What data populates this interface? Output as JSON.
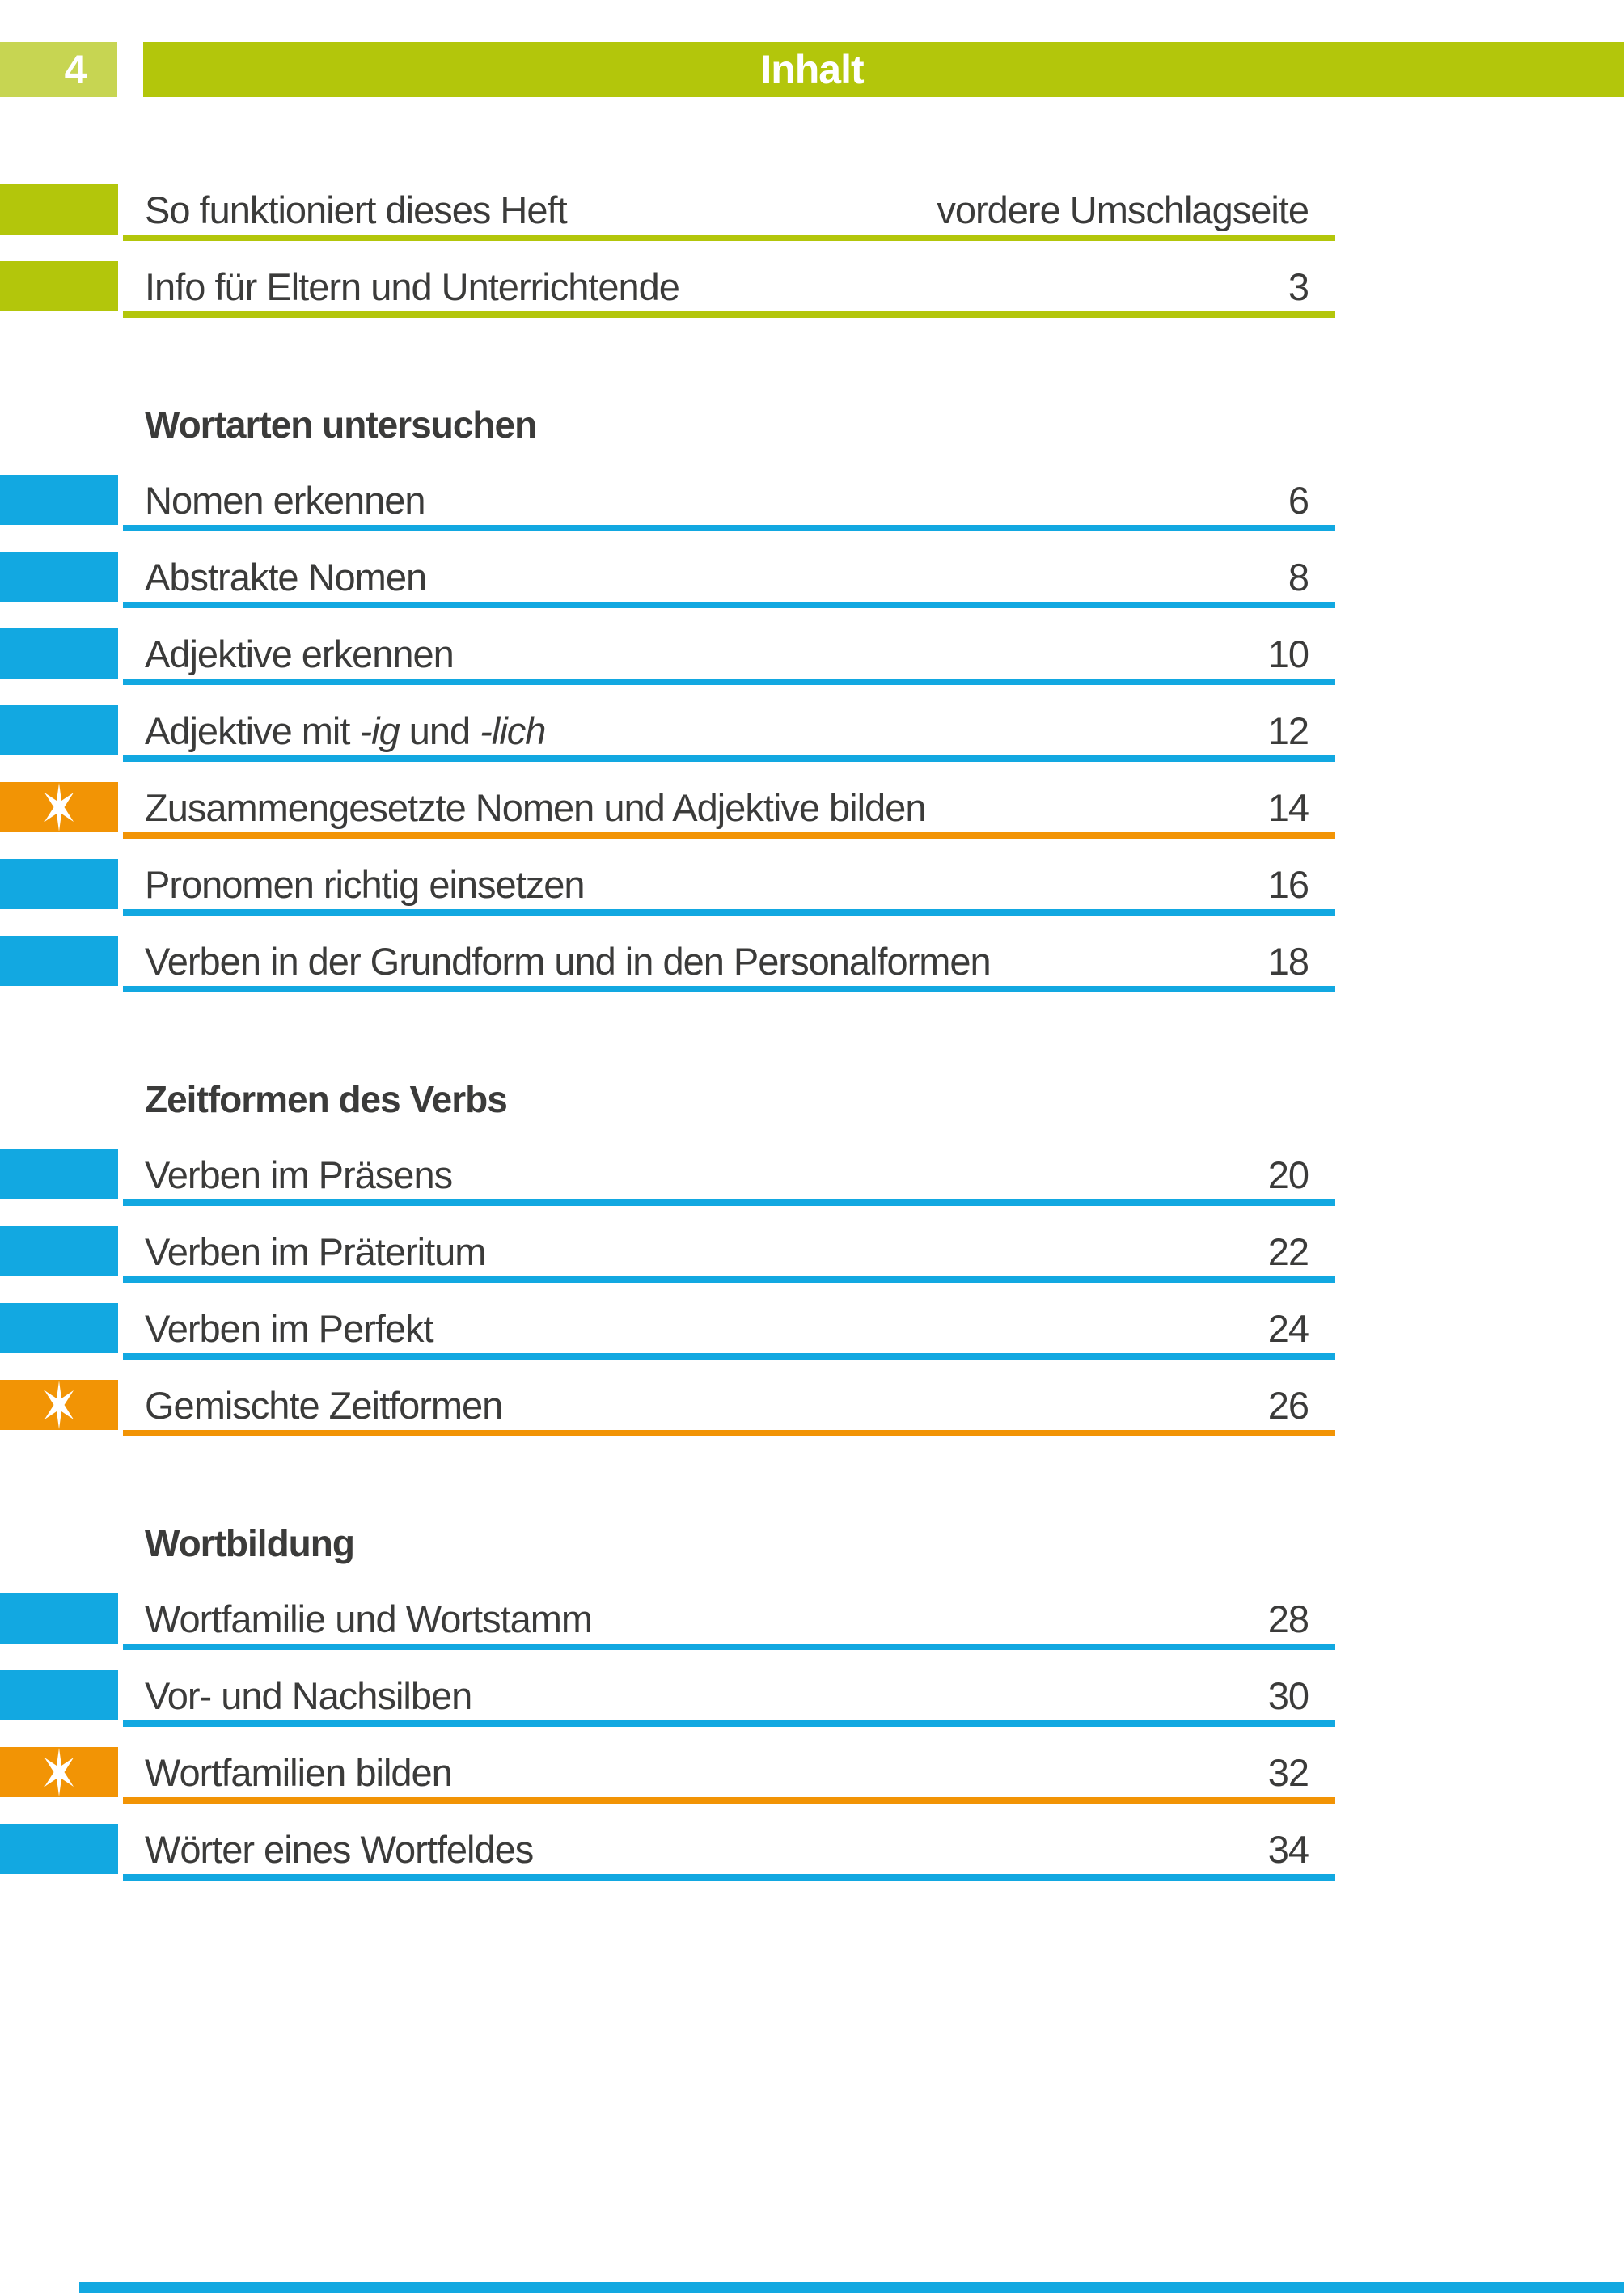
{
  "colors": {
    "green": "#b3c60b",
    "green_light": "#c7d552",
    "blue": "#12a8e1",
    "orange": "#f29405",
    "ink": "#3b3b3a"
  },
  "header": {
    "page_number": "4",
    "title": "Inhalt"
  },
  "toc": {
    "groups": [
      {
        "title": null,
        "items": [
          {
            "marker": "green",
            "label_parts": [
              {
                "text": "So funktioniert dieses Heft"
              }
            ],
            "page": "vordere Umschlagseite"
          },
          {
            "marker": "green",
            "label_parts": [
              {
                "text": "Info für Eltern und Unterrichtende"
              }
            ],
            "page": "3"
          }
        ]
      },
      {
        "title": "Wortarten untersuchen",
        "items": [
          {
            "marker": "blue",
            "label_parts": [
              {
                "text": "Nomen erkennen"
              }
            ],
            "page": "6"
          },
          {
            "marker": "blue",
            "label_parts": [
              {
                "text": "Abstrakte Nomen"
              }
            ],
            "page": "8"
          },
          {
            "marker": "blue",
            "label_parts": [
              {
                "text": "Adjektive erkennen"
              }
            ],
            "page": "10"
          },
          {
            "marker": "blue",
            "label_parts": [
              {
                "text": "Adjektive mit "
              },
              {
                "text": "-ig",
                "italic": true
              },
              {
                "text": " und "
              },
              {
                "text": "-lich",
                "italic": true
              }
            ],
            "page": "12"
          },
          {
            "marker": "orange",
            "star": true,
            "label_parts": [
              {
                "text": "Zusammengesetzte Nomen und Adjektive bilden"
              }
            ],
            "page": "14"
          },
          {
            "marker": "blue",
            "label_parts": [
              {
                "text": "Pronomen richtig einsetzen"
              }
            ],
            "page": "16"
          },
          {
            "marker": "blue",
            "label_parts": [
              {
                "text": "Verben in der Grundform und in den Personalformen"
              }
            ],
            "page": "18"
          }
        ]
      },
      {
        "title": "Zeitformen des Verbs",
        "items": [
          {
            "marker": "blue",
            "label_parts": [
              {
                "text": "Verben im Präsens"
              }
            ],
            "page": "20"
          },
          {
            "marker": "blue",
            "label_parts": [
              {
                "text": "Verben im Präteritum"
              }
            ],
            "page": "22"
          },
          {
            "marker": "blue",
            "label_parts": [
              {
                "text": "Verben im Perfekt"
              }
            ],
            "page": "24"
          },
          {
            "marker": "orange",
            "star": true,
            "label_parts": [
              {
                "text": "Gemischte Zeitformen"
              }
            ],
            "page": "26"
          }
        ]
      },
      {
        "title": "Wortbildung",
        "items": [
          {
            "marker": "blue",
            "label_parts": [
              {
                "text": "Wortfamilie und Wortstamm"
              }
            ],
            "page": "28"
          },
          {
            "marker": "blue",
            "label_parts": [
              {
                "text": "Vor- und Nachsilben"
              }
            ],
            "page": "30"
          },
          {
            "marker": "orange",
            "star": true,
            "label_parts": [
              {
                "text": "Wortfamilien bilden"
              }
            ],
            "page": "32"
          },
          {
            "marker": "blue",
            "label_parts": [
              {
                "text": "Wörter eines Wortfeldes"
              }
            ],
            "page": "34"
          }
        ]
      }
    ]
  }
}
